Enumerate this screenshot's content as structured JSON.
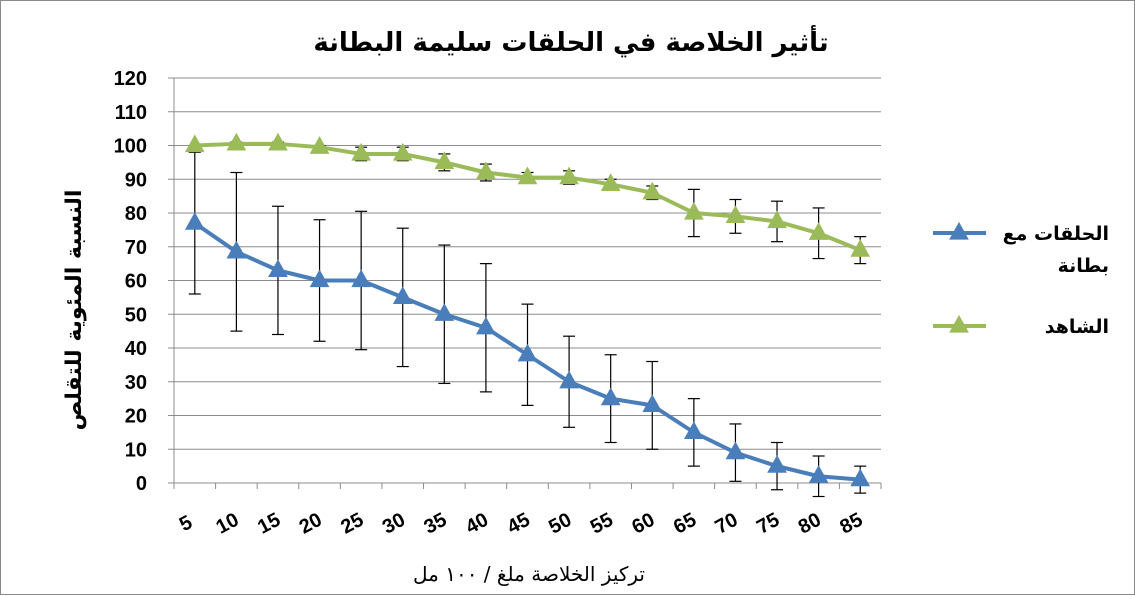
{
  "chart_data": {
    "type": "line",
    "title": "تأثير الخلاصة في الحلقات سليمة  البطانة",
    "xlabel": "تركيز الخلاصة ملغ / ١٠٠ مل",
    "ylabel": "النسبة المئوية للتقلص",
    "ylim": [
      0,
      120
    ],
    "yticks": [
      0,
      10,
      20,
      30,
      40,
      50,
      60,
      70,
      80,
      90,
      100,
      110,
      120
    ],
    "grid": true,
    "legend_position": "right",
    "categories": [
      "5",
      "10",
      "15",
      "20",
      "25",
      "30",
      "35",
      "40",
      "45",
      "50",
      "55",
      "60",
      "65",
      "70",
      "75",
      "80",
      "85"
    ],
    "series": [
      {
        "name": "الحلقات مع بطانة",
        "color": "#4a7ebb",
        "marker": "triangle",
        "values": [
          77,
          68.5,
          63,
          60,
          60,
          55,
          50,
          46,
          38,
          30,
          25,
          23,
          15,
          9,
          5,
          2,
          1
        ],
        "error": [
          21,
          23.5,
          19,
          18,
          20.5,
          20.5,
          20.5,
          19,
          15,
          13.5,
          13,
          13,
          10,
          8.5,
          7,
          6,
          4
        ]
      },
      {
        "name": "الشاهد",
        "color": "#9bbb59",
        "marker": "triangle",
        "values": [
          100,
          100.5,
          100.5,
          99.5,
          97.5,
          97.5,
          95,
          92,
          90.5,
          90.5,
          88.5,
          86,
          80,
          79,
          77.5,
          74,
          69
        ],
        "error": [
          0,
          0.5,
          0.5,
          0.5,
          2,
          2,
          2.5,
          2.5,
          1.5,
          2,
          1.5,
          2,
          7,
          5,
          6,
          7.5,
          4
        ]
      }
    ]
  }
}
